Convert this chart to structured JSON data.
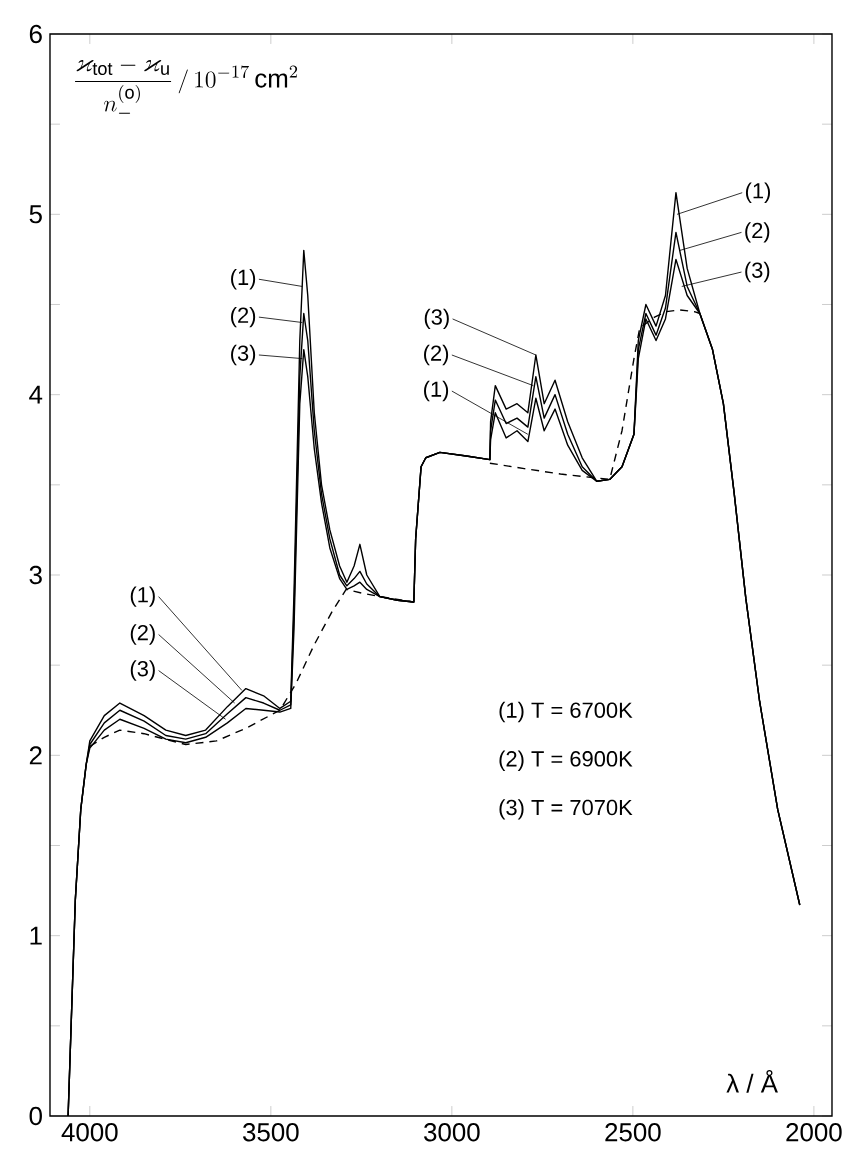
{
  "chart_data": {
    "type": "line",
    "xlabel": "λ / Å",
    "ylabel": "\\frac{\\varkappa_{\\mathrm{tot}}-\\varkappa_{\\mathrm{u}}}{n_{-}^{(\\mathrm{o})}}\\,/\\,10^{-17}\\,\\mathrm{cm}^{2}",
    "xlim": [
      4110,
      1950
    ],
    "ylim": [
      0,
      6
    ],
    "xticks": [
      4000,
      3500,
      3000,
      2500,
      2000
    ],
    "yticks": [
      0,
      {
        "value": 0.5,
        "label": null
      },
      1,
      {
        "value": 1.5,
        "label": null
      },
      2,
      {
        "value": 2.5,
        "label": null
      },
      3,
      {
        "value": 3.5,
        "label": null
      },
      4,
      {
        "value": 4.5,
        "label": null
      },
      5,
      {
        "value": 5.5,
        "label": null
      },
      6
    ],
    "marker": "none",
    "line_style": "solid",
    "series": [
      {
        "color": "#000000",
        "x": [
          4060,
          4050,
          4040,
          4025,
          4010,
          4000,
          3960,
          3917,
          3850,
          3790,
          3735,
          3680,
          3620,
          3569,
          3520,
          3475,
          3445,
          3436,
          3420,
          3409,
          3398,
          3380,
          3360,
          3337,
          3310,
          3290,
          3270,
          3254,
          3235,
          3199,
          3150,
          3105,
          3100,
          3085,
          3072,
          3033,
          2960,
          2895,
          2893,
          2880,
          2850,
          2820,
          2790,
          2768,
          2745,
          2715,
          2680,
          2640,
          2600,
          2564,
          2530,
          2497,
          2485,
          2464,
          2436,
          2410,
          2381,
          2350,
          2315,
          2280,
          2250,
          2220,
          2188,
          2150,
          2100,
          2039
        ],
        "values": [
          0,
          0.6,
          1.2,
          1.7,
          1.95,
          2.08,
          2.22,
          2.29,
          2.22,
          2.14,
          2.11,
          2.14,
          2.27,
          2.37,
          2.33,
          2.26,
          2.3,
          2.9,
          4.3,
          4.8,
          4.55,
          3.9,
          3.5,
          3.25,
          3.05,
          2.96,
          3.05,
          3.17,
          3.0,
          2.88,
          2.86,
          2.85,
          3.2,
          3.6,
          3.65,
          3.68,
          3.66,
          3.64,
          3.75,
          3.9,
          3.76,
          3.8,
          3.74,
          3.98,
          3.8,
          3.92,
          3.72,
          3.58,
          3.52,
          3.53,
          3.6,
          3.78,
          4.3,
          4.5,
          4.38,
          4.55,
          5.12,
          4.7,
          4.45,
          4.25,
          3.95,
          3.45,
          2.87,
          2.3,
          1.7,
          1.17
        ]
      },
      {
        "color": "#000000",
        "x": [
          4060,
          4050,
          4040,
          4025,
          4010,
          4000,
          3960,
          3917,
          3850,
          3790,
          3735,
          3680,
          3620,
          3569,
          3520,
          3475,
          3445,
          3436,
          3420,
          3409,
          3398,
          3380,
          3360,
          3337,
          3310,
          3290,
          3270,
          3254,
          3235,
          3199,
          3150,
          3105,
          3100,
          3085,
          3072,
          3033,
          2960,
          2895,
          2893,
          2880,
          2850,
          2820,
          2790,
          2768,
          2745,
          2715,
          2680,
          2640,
          2600,
          2564,
          2530,
          2497,
          2485,
          2464,
          2436,
          2410,
          2381,
          2350,
          2315,
          2280,
          2250,
          2220,
          2188,
          2150,
          2100,
          2039
        ],
        "values": [
          0,
          0.6,
          1.2,
          1.7,
          1.95,
          2.06,
          2.18,
          2.25,
          2.19,
          2.11,
          2.09,
          2.12,
          2.23,
          2.32,
          2.29,
          2.25,
          2.28,
          2.8,
          4.1,
          4.45,
          4.3,
          3.8,
          3.45,
          3.2,
          3.0,
          2.94,
          2.98,
          3.02,
          2.95,
          2.88,
          2.86,
          2.85,
          3.2,
          3.6,
          3.65,
          3.68,
          3.66,
          3.64,
          3.8,
          3.97,
          3.84,
          3.87,
          3.82,
          4.1,
          3.87,
          4.0,
          3.78,
          3.6,
          3.52,
          3.53,
          3.6,
          3.78,
          4.25,
          4.45,
          4.33,
          4.48,
          4.9,
          4.6,
          4.45,
          4.25,
          3.95,
          3.45,
          2.87,
          2.3,
          1.7,
          1.17
        ]
      },
      {
        "color": "#000000",
        "x": [
          4060,
          4050,
          4040,
          4025,
          4010,
          4000,
          3960,
          3917,
          3850,
          3790,
          3735,
          3680,
          3620,
          3569,
          3520,
          3475,
          3445,
          3436,
          3420,
          3409,
          3398,
          3380,
          3360,
          3337,
          3310,
          3290,
          3270,
          3254,
          3235,
          3199,
          3150,
          3105,
          3100,
          3085,
          3072,
          3033,
          2960,
          2895,
          2893,
          2880,
          2850,
          2820,
          2790,
          2768,
          2745,
          2715,
          2680,
          2640,
          2600,
          2564,
          2530,
          2497,
          2485,
          2464,
          2436,
          2410,
          2381,
          2350,
          2315,
          2280,
          2250,
          2220,
          2188,
          2150,
          2100,
          2039
        ],
        "values": [
          0,
          0.6,
          1.2,
          1.7,
          1.95,
          2.04,
          2.14,
          2.2,
          2.15,
          2.09,
          2.07,
          2.1,
          2.18,
          2.26,
          2.25,
          2.24,
          2.26,
          2.7,
          3.95,
          4.25,
          4.1,
          3.7,
          3.4,
          3.15,
          2.98,
          2.92,
          2.94,
          2.96,
          2.92,
          2.88,
          2.86,
          2.85,
          3.2,
          3.6,
          3.65,
          3.68,
          3.66,
          3.64,
          3.85,
          4.05,
          3.92,
          3.95,
          3.9,
          4.22,
          3.95,
          4.08,
          3.85,
          3.65,
          3.52,
          3.53,
          3.6,
          3.78,
          4.2,
          4.42,
          4.3,
          4.42,
          4.75,
          4.55,
          4.45,
          4.25,
          3.95,
          3.45,
          2.87,
          2.3,
          1.7,
          1.17
        ]
      },
      {
        "color": "#000000",
        "line_style": "dashed",
        "x": [
          4000,
          3960,
          3917,
          3850,
          3735,
          3650,
          3569,
          3475,
          3430,
          3381,
          3330,
          3292,
          3250,
          3199,
          3105,
          3000,
          2895,
          2800,
          2700,
          2564,
          2530,
          2497,
          2481,
          2440,
          2409,
          2370,
          2330,
          2315
        ],
        "values": [
          2.05,
          2.1,
          2.14,
          2.12,
          2.06,
          2.08,
          2.15,
          2.25,
          2.4,
          2.61,
          2.8,
          2.92,
          2.9,
          2.88,
          2.85,
          null,
          3.62,
          3.59,
          3.56,
          3.53,
          3.8,
          4.2,
          4.37,
          4.43,
          4.46,
          4.47,
          4.46,
          4.45
        ]
      }
    ],
    "annotations": [
      {
        "text": "(1)",
        "x": 3580,
        "y": 2.36
      },
      {
        "text": "(2)",
        "x": 3600,
        "y": 2.29
      },
      {
        "text": "(3)",
        "x": 3625,
        "y": 2.2
      },
      {
        "text": "(1)",
        "x": 3413,
        "y": 4.6
      },
      {
        "text": "(2)",
        "x": 3413,
        "y": 4.4
      },
      {
        "text": "(3)",
        "x": 3413,
        "y": 4.2
      },
      {
        "text": "(3)",
        "x": 2768,
        "y": 4.22
      },
      {
        "text": "(2)",
        "x": 2775,
        "y": 4.05
      },
      {
        "text": "(1)",
        "x": 2790,
        "y": 3.78
      },
      {
        "text": "(1)",
        "x": 2378,
        "y": 5.0
      },
      {
        "text": "(2)",
        "x": 2370,
        "y": 4.8
      },
      {
        "text": "(3)",
        "x": 2365,
        "y": 4.6
      },
      "(1) T = 6700K",
      "(2) T = 6900K",
      "(3) T = 7070K"
    ]
  }
}
